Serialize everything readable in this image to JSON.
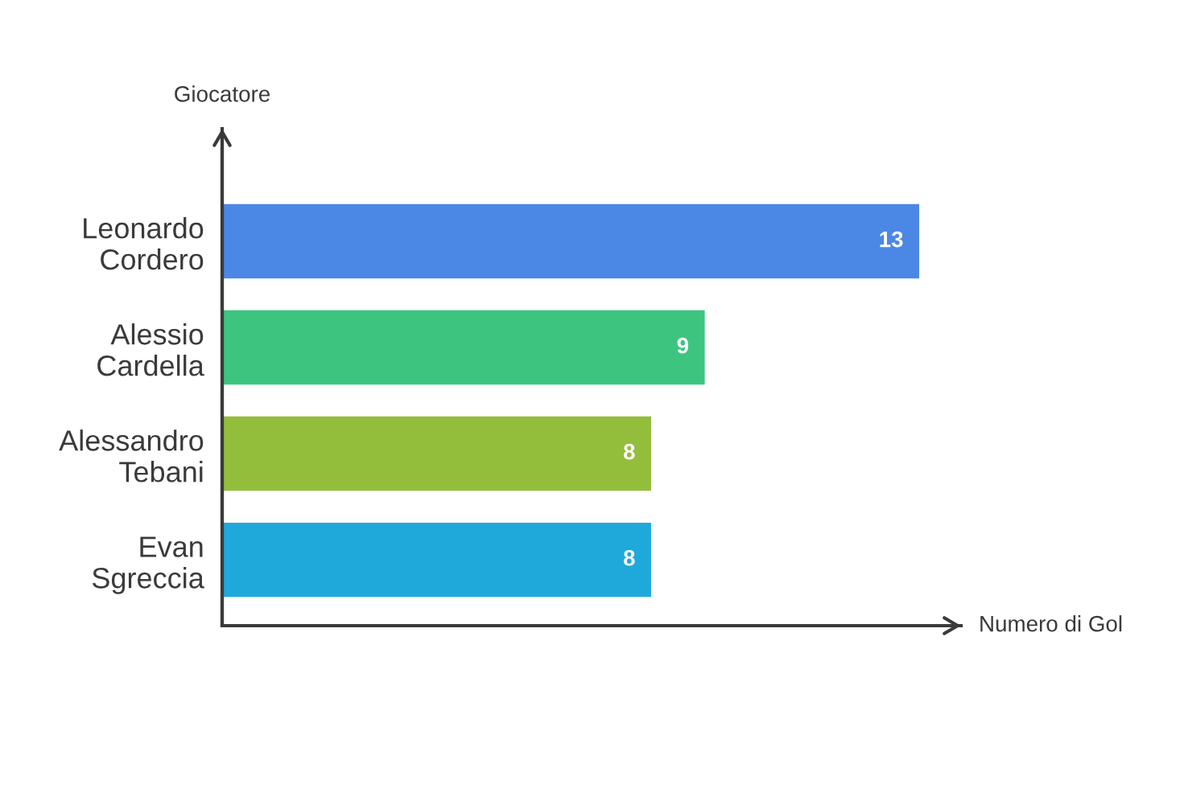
{
  "chart_data": {
    "type": "bar",
    "orientation": "horizontal",
    "ylabel": "Giocatore",
    "xlabel": "Numero di Gol",
    "categories": [
      "Leonardo\nCordero",
      "Alessio\nCardella",
      "Alessandro\nTebani",
      "Evan\nSgreccia"
    ],
    "values": [
      13,
      9,
      8,
      8
    ],
    "colors": [
      "#4b87e5",
      "#3dc580",
      "#93be3b",
      "#1fa9da"
    ],
    "data_labels": true,
    "tick_labels": "y"
  }
}
